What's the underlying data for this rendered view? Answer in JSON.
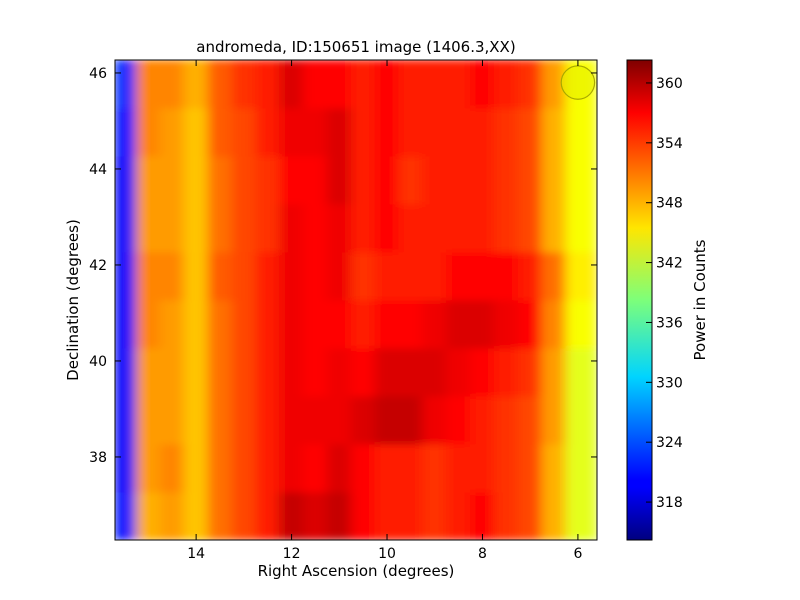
{
  "chart_data": {
    "type": "heatmap",
    "title": "andromeda, ID:150651 image (1406.3,XX)",
    "xlabel": "Right Ascension (degrees)",
    "ylabel": "Declination (degrees)",
    "colorbar_label": "Power in Counts",
    "colormap": "jet",
    "xlim": [
      15.7,
      5.6
    ],
    "ylim": [
      36.27,
      46.27
    ],
    "clim": [
      314.2,
      362.3
    ],
    "xticks": [
      14,
      12,
      10,
      8,
      6
    ],
    "yticks": [
      38,
      40,
      42,
      44,
      46
    ],
    "cticks": [
      318,
      324,
      330,
      336,
      342,
      348,
      354,
      360
    ],
    "ra_edges": [
      15.7,
      15.25,
      14.75,
      14.25,
      13.75,
      13.25,
      12.75,
      12.25,
      11.75,
      11.25,
      10.75,
      10.25,
      9.75,
      9.25,
      8.75,
      8.25,
      7.75,
      7.25,
      6.75,
      6.25,
      5.6
    ],
    "dec_edges": [
      46.27,
      45.25,
      44.25,
      43.25,
      42.25,
      41.25,
      40.25,
      39.25,
      38.25,
      37.25,
      36.27
    ],
    "values": [
      [
        322,
        350,
        350,
        348,
        352,
        354,
        355,
        358,
        356,
        356,
        355,
        356,
        355,
        355,
        355,
        356,
        355,
        354,
        349,
        344
      ],
      [
        321,
        350,
        349,
        347,
        352,
        353,
        355,
        357,
        357,
        358,
        355,
        356,
        355,
        355,
        355,
        355,
        354,
        353,
        348,
        344
      ],
      [
        320,
        349,
        349,
        347,
        351,
        353,
        354,
        356,
        356,
        358,
        355,
        356,
        354,
        355,
        355,
        355,
        354,
        353,
        348,
        344
      ],
      [
        320,
        349,
        349,
        347,
        351,
        353,
        354,
        357,
        356,
        357,
        355,
        356,
        355,
        355,
        355,
        355,
        354,
        353,
        348,
        344
      ],
      [
        320,
        350,
        350,
        347,
        352,
        353,
        355,
        357,
        356,
        357,
        354,
        355,
        355,
        355,
        356,
        356,
        356,
        355,
        351,
        345
      ],
      [
        320,
        350,
        349,
        347,
        351,
        353,
        355,
        357,
        356,
        356,
        355,
        356,
        356,
        357,
        358,
        358,
        357,
        356,
        350,
        344
      ],
      [
        320,
        349,
        349,
        347,
        351,
        353,
        355,
        357,
        356,
        357,
        356,
        358,
        358,
        358,
        357,
        356,
        355,
        354,
        349,
        343
      ],
      [
        320,
        349,
        349,
        347,
        351,
        353,
        355,
        357,
        357,
        357,
        358,
        359,
        359,
        357,
        356,
        355,
        354,
        353,
        349,
        343
      ],
      [
        320,
        349,
        350,
        347,
        351,
        353,
        355,
        357,
        356,
        358,
        356,
        355,
        355,
        354,
        355,
        355,
        354,
        353,
        348,
        343
      ],
      [
        321,
        348,
        349,
        347,
        351,
        353,
        355,
        359,
        358,
        359,
        356,
        355,
        355,
        354,
        355,
        356,
        354,
        353,
        348,
        343
      ]
    ],
    "marker": {
      "ra": 6.0,
      "dec": 45.8,
      "radius_deg": 0.35,
      "color": "#e6f000"
    }
  }
}
